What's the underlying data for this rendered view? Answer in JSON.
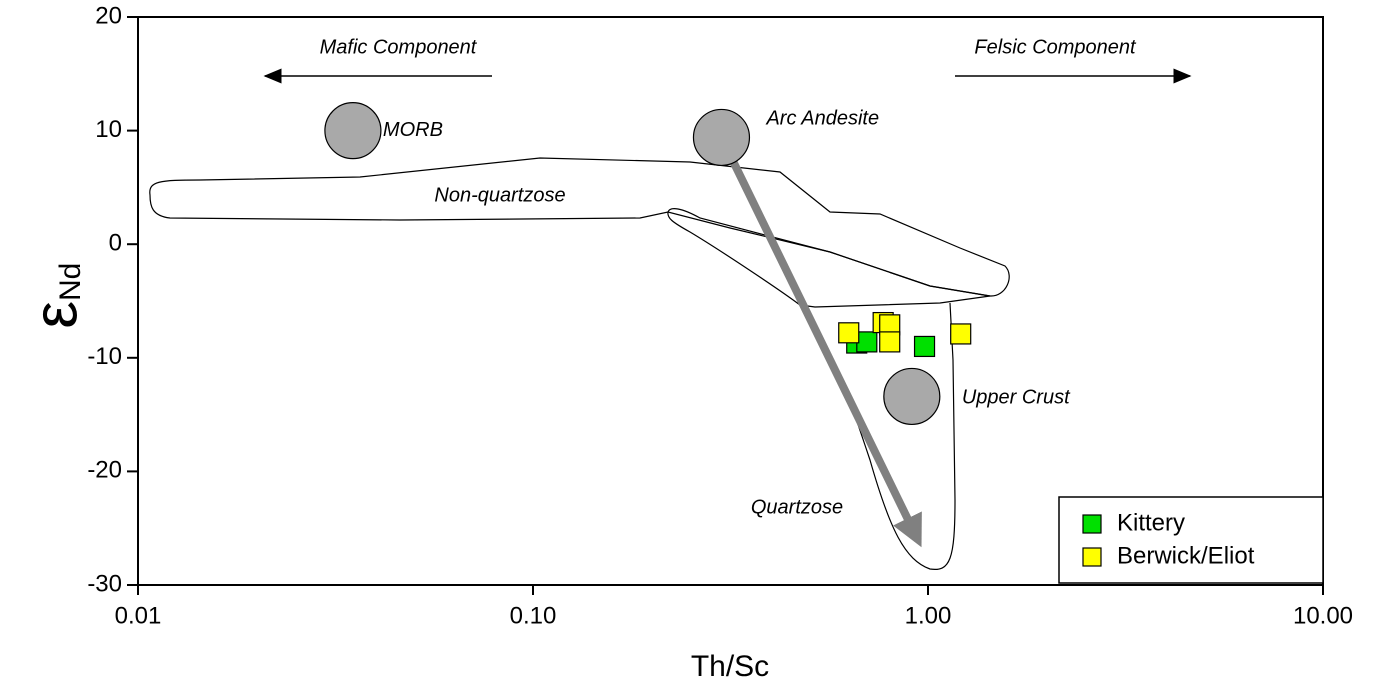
{
  "chart_data": {
    "type": "scatter",
    "xlabel": "Th/Sc",
    "ylabel": "ε",
    "ylabel_subscript": "Nd",
    "xscale": "log",
    "xlim": [
      0.01,
      10
    ],
    "ylim": [
      -30,
      20
    ],
    "xticks": [
      {
        "value": 0.01,
        "label": "0.01"
      },
      {
        "value": 0.1,
        "label": "0.10"
      },
      {
        "value": 1,
        "label": "1.00"
      },
      {
        "value": 10,
        "label": "10.00"
      }
    ],
    "yticks": [
      20,
      10,
      0,
      -10,
      -20,
      -30
    ],
    "legend": "lower right",
    "series": [
      {
        "name": "Kittery",
        "color": "#00e000",
        "x": [
          0.66,
          0.7,
          0.98
        ],
        "values": [
          -8.7,
          -8.6,
          -9.0
        ]
      },
      {
        "name": "Berwick/Eliot",
        "color": "#ffff00",
        "x": [
          0.63,
          0.77,
          0.8,
          0.8,
          1.21
        ],
        "values": [
          -7.8,
          -6.9,
          -7.1,
          -8.6,
          -7.9
        ]
      }
    ],
    "reference_points": {
      "color": "#a9a9a9",
      "labels": [
        "MORB",
        "Arc Andesite",
        "Upper Crust"
      ],
      "x": [
        0.035,
        0.3,
        0.91
      ],
      "values": [
        10,
        9.4,
        -13.4
      ]
    },
    "annotations": [
      "Mafic Component",
      "Felsic Component",
      "Non-quartzose",
      "Quartzose"
    ]
  }
}
